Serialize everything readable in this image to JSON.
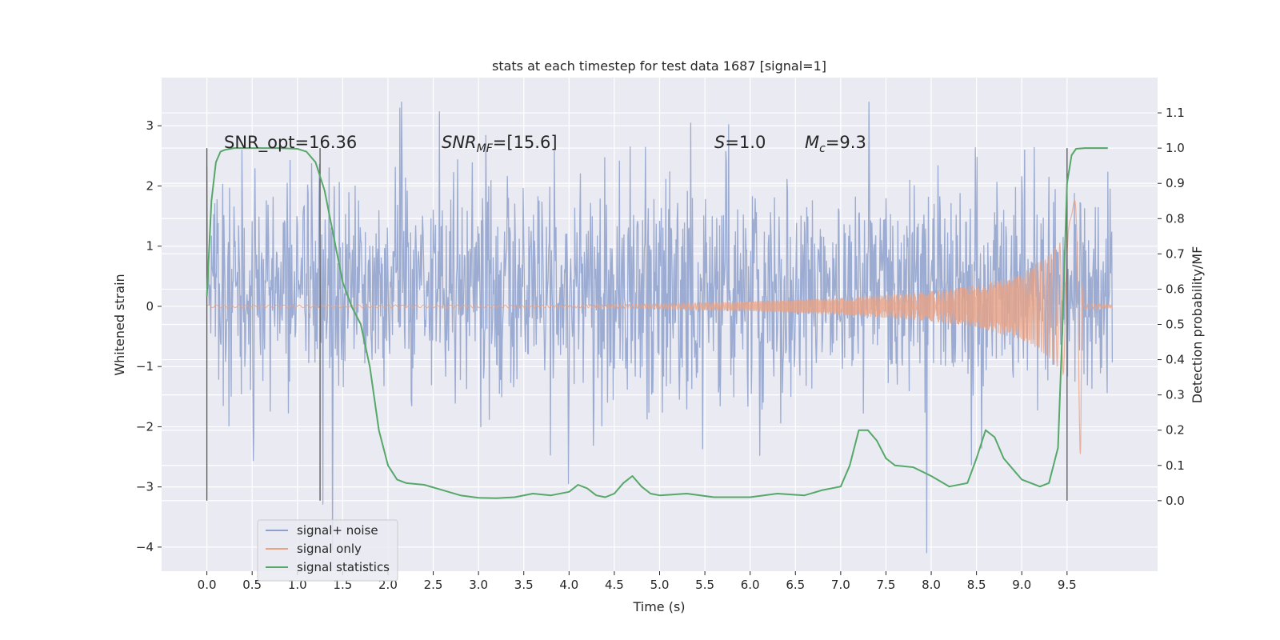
{
  "chart_data": {
    "type": "line",
    "title": "stats at each timestep for test data 1687 [signal=1]",
    "xlabel": "Time (s)",
    "ylabel_left": "Whitened strain",
    "ylabel_right": "Detection probability/MF",
    "xlim": [
      -0.5,
      10.5
    ],
    "ylim_left": [
      -4.4,
      3.8
    ],
    "ylim_right": [
      -0.2,
      1.2
    ],
    "x_ticks": [
      "0.0",
      "0.5",
      "1.0",
      "1.5",
      "2.0",
      "2.5",
      "3.0",
      "3.5",
      "4.0",
      "4.5",
      "5.0",
      "5.5",
      "6.0",
      "6.5",
      "7.0",
      "7.5",
      "8.0",
      "8.5",
      "9.0",
      "9.5"
    ],
    "y_ticks_left": [
      "3",
      "2",
      "1",
      "0",
      "−1",
      "−2",
      "−3",
      "−4"
    ],
    "y_ticks_right": [
      "1.1",
      "1.0",
      "0.9",
      "0.8",
      "0.7",
      "0.6",
      "0.5",
      "0.4",
      "0.3",
      "0.2",
      "0.1",
      "0.0"
    ],
    "grid": true,
    "legend_placement": "lower-left",
    "annotations": {
      "snr_opt": "SNR_opt=16.36",
      "snr_mf_sym": "SNR",
      "snr_mf_sub": "MF",
      "snr_mf_val": "=[15.6]",
      "s_sym": "S",
      "s_val": "=1.0",
      "mc_sym": "M",
      "mc_sub": "c",
      "mc_val": "=9.3"
    },
    "vertical_markers_x": [
      0.0,
      1.25,
      9.5
    ],
    "series": [
      {
        "name": "signal+ noise",
        "color": "#8da0cb",
        "x_range": [
          0.0,
          10.0
        ],
        "typical_envelope": [
          -1.5,
          2.0
        ],
        "peak_max": 3.4,
        "peak_min": -4.1
      },
      {
        "name": "signal only",
        "color": "#e8a285",
        "note_x_start": 5.0,
        "x_range": [
          0.0,
          10.0
        ],
        "amplitude_points": [
          [
            0.0,
            0.02
          ],
          [
            4.0,
            0.02
          ],
          [
            5.0,
            0.04
          ],
          [
            6.0,
            0.08
          ],
          [
            7.0,
            0.14
          ],
          [
            8.0,
            0.25
          ],
          [
            8.5,
            0.35
          ],
          [
            9.0,
            0.55
          ],
          [
            9.3,
            0.85
          ],
          [
            9.5,
            1.2
          ],
          [
            9.6,
            1.9
          ],
          [
            9.65,
            2.5
          ],
          [
            9.68,
            0.05
          ],
          [
            10.0,
            0.02
          ]
        ]
      },
      {
        "name": "signal statistics",
        "color": "#55a868",
        "x": [
          0.0,
          0.05,
          0.1,
          0.15,
          0.2,
          0.3,
          0.5,
          0.8,
          1.0,
          1.1,
          1.2,
          1.3,
          1.4,
          1.5,
          1.6,
          1.7,
          1.8,
          1.9,
          2.0,
          2.1,
          2.2,
          2.4,
          2.6,
          2.8,
          3.0,
          3.2,
          3.4,
          3.6,
          3.8,
          4.0,
          4.1,
          4.2,
          4.3,
          4.4,
          4.5,
          4.6,
          4.7,
          4.8,
          4.9,
          5.0,
          5.3,
          5.6,
          6.0,
          6.3,
          6.6,
          6.8,
          7.0,
          7.1,
          7.2,
          7.3,
          7.4,
          7.5,
          7.6,
          7.8,
          8.0,
          8.2,
          8.4,
          8.5,
          8.6,
          8.7,
          8.8,
          9.0,
          9.2,
          9.3,
          9.4,
          9.45,
          9.5,
          9.55,
          9.6,
          9.7,
          9.8,
          9.95
        ],
        "values": [
          0.58,
          0.85,
          0.96,
          0.99,
          0.995,
          1.0,
          1.0,
          1.0,
          0.998,
          0.99,
          0.96,
          0.88,
          0.75,
          0.62,
          0.55,
          0.5,
          0.38,
          0.2,
          0.1,
          0.06,
          0.05,
          0.045,
          0.03,
          0.015,
          0.008,
          0.007,
          0.01,
          0.02,
          0.015,
          0.025,
          0.045,
          0.035,
          0.015,
          0.01,
          0.02,
          0.05,
          0.07,
          0.04,
          0.02,
          0.015,
          0.02,
          0.01,
          0.01,
          0.02,
          0.015,
          0.03,
          0.04,
          0.1,
          0.2,
          0.2,
          0.17,
          0.12,
          0.1,
          0.095,
          0.07,
          0.04,
          0.05,
          0.12,
          0.2,
          0.18,
          0.12,
          0.06,
          0.04,
          0.05,
          0.15,
          0.5,
          0.9,
          0.98,
          0.998,
          1.0,
          1.0,
          1.0
        ]
      }
    ]
  }
}
